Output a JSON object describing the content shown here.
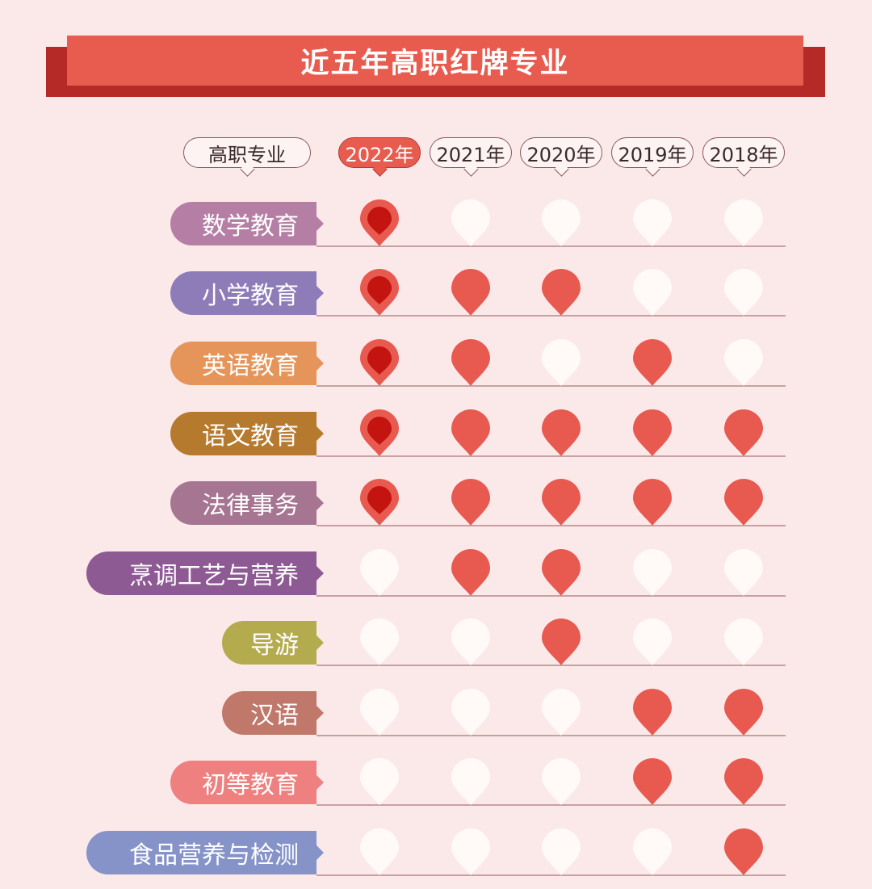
{
  "title": "近五年高职红牌专业",
  "header": {
    "major_label": "高职专业",
    "years": [
      "2022年",
      "2021年",
      "2020年",
      "2019年",
      "2018年"
    ],
    "active_year_index": 0
  },
  "colors": {
    "background": "#fbe9ea",
    "banner": "#e85c50",
    "banner_shadow": "#b52a27",
    "pin_marked": "#e85a50",
    "pin_marked_current_inner": "#c4140f",
    "pin_unmarked": "#fffaf8"
  },
  "chart_data": {
    "type": "table",
    "title": "近五年高职红牌专业",
    "columns": [
      "2022年",
      "2021年",
      "2020年",
      "2019年",
      "2018年"
    ],
    "rows": [
      {
        "name": "数学教育",
        "color": "#b57fa5",
        "red_card": [
          1,
          0,
          0,
          0,
          0
        ]
      },
      {
        "name": "小学教育",
        "color": "#8e7cb8",
        "red_card": [
          1,
          1,
          1,
          0,
          0
        ]
      },
      {
        "name": "英语教育",
        "color": "#e5955a",
        "red_card": [
          1,
          1,
          0,
          1,
          0
        ]
      },
      {
        "name": "语文教育",
        "color": "#b57a2e",
        "red_card": [
          1,
          1,
          1,
          1,
          1
        ]
      },
      {
        "name": "法律事务",
        "color": "#a57592",
        "red_card": [
          1,
          1,
          1,
          1,
          1
        ]
      },
      {
        "name": "烹调工艺与营养",
        "color": "#8d5a94",
        "red_card": [
          0,
          1,
          1,
          0,
          0
        ]
      },
      {
        "name": "导游",
        "color": "#b4ab4f",
        "red_card": [
          0,
          0,
          1,
          0,
          0
        ]
      },
      {
        "name": "汉语",
        "color": "#c0786a",
        "red_card": [
          0,
          0,
          0,
          1,
          1
        ]
      },
      {
        "name": "初等教育",
        "color": "#ee8080",
        "red_card": [
          0,
          0,
          0,
          1,
          1
        ]
      },
      {
        "name": "食品营养与检测",
        "color": "#8593c8",
        "red_card": [
          0,
          0,
          0,
          0,
          1
        ]
      }
    ]
  }
}
